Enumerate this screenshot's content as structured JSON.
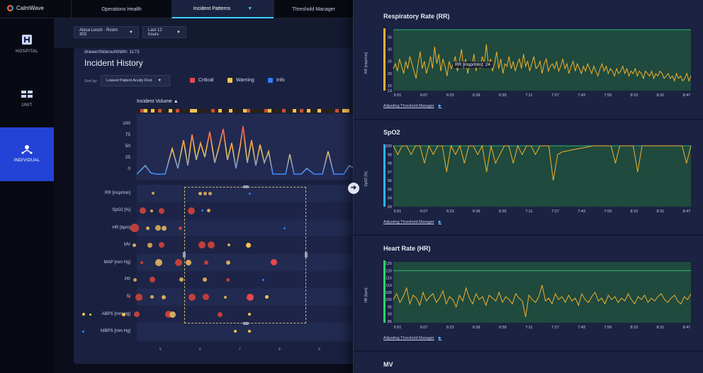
{
  "app": {
    "name": "CalmWave"
  },
  "tabs": [
    {
      "label": "Operations Health"
    },
    {
      "label": "Incident Patterns"
    },
    {
      "label": "Threshold Manager"
    }
  ],
  "sidebar": {
    "items": [
      {
        "label": "HOSPITAL",
        "icon": "hospital-icon"
      },
      {
        "label": "UNIT",
        "icon": "beds-icon"
      },
      {
        "label": "INDIVIDUAL",
        "icon": "person-network-icon"
      }
    ]
  },
  "filters": {
    "patient": "Alesa Lesch · Room 303",
    "time_range": "Last 12 hours"
  },
  "panel": {
    "debug_text": "drawerSlideoutWidth: 1173",
    "title": "Incident History",
    "sort_label": "Sort by:",
    "sort_value": "Lowest Patient Acuity First",
    "legend": [
      {
        "label": "Critical",
        "color": "#e5484d"
      },
      {
        "label": "Warning",
        "color": "#f5c451"
      },
      {
        "label": "Info",
        "color": "#2f7dff"
      }
    ],
    "volume_label": "Incident Volume",
    "volume_yticks": [
      "100",
      "75",
      "50",
      "25",
      "0"
    ],
    "rows": [
      "RR [insp/min]",
      "SpO2 [%]",
      "HR [bpm]",
      "MV",
      "MAP [mm Hg]",
      "PP",
      "SI",
      "ABPS [mm Hg]",
      "NIBPS [mm Hg]"
    ],
    "xticks": [
      "5",
      "6",
      "7",
      "8",
      "9"
    ]
  },
  "chart_data": [
    {
      "type": "line",
      "title": "Respiratory Rate (RR)",
      "ylabel": "RR [insp/min]",
      "yticks": [
        "35",
        "30",
        "25",
        "20",
        "15",
        "13"
      ],
      "ylim": [
        13,
        38
      ],
      "xticks": [
        "5:51",
        "6:07",
        "6:23",
        "6:39",
        "6:55",
        "7:11",
        "7:27",
        "7:43",
        "7:59",
        "8:15",
        "8:31",
        "8:47"
      ],
      "threshold_band": [
        13,
        38
      ],
      "values": [
        22,
        24,
        21,
        26,
        23,
        20,
        25,
        22,
        27,
        24,
        21,
        18,
        24,
        29,
        22,
        25,
        20,
        23,
        27,
        22,
        31,
        24,
        28,
        21,
        26,
        23,
        19,
        25,
        22,
        24,
        27,
        21,
        25,
        30,
        22,
        26,
        20,
        24,
        23,
        28,
        21,
        25,
        22,
        27,
        24,
        32,
        23,
        26,
        21,
        24,
        29,
        22,
        26,
        20,
        24,
        23,
        27,
        22,
        25,
        21,
        24,
        26,
        22,
        28,
        23,
        25,
        21,
        24,
        27,
        22,
        23,
        25,
        20,
        24,
        26,
        21,
        23,
        24,
        22,
        25,
        21,
        23,
        26,
        22,
        24,
        20,
        23,
        25,
        21,
        24,
        22,
        20,
        23,
        21,
        24,
        22,
        20,
        23,
        21,
        19,
        22,
        24,
        21,
        23,
        20,
        22,
        21,
        19,
        22,
        20,
        21,
        23,
        20,
        22,
        19,
        21,
        20,
        22,
        19,
        21,
        20,
        18,
        21,
        20,
        19,
        21,
        18,
        20,
        19,
        21,
        20,
        18,
        19,
        20,
        18,
        19,
        17,
        20,
        18,
        19,
        17,
        18,
        20,
        17,
        19
      ]
    },
    {
      "type": "line",
      "title": "SpO2",
      "ylabel": "SpO2 [%]",
      "yticks": [
        "100",
        "99",
        "98",
        "97",
        "96",
        "95",
        "94",
        "93"
      ],
      "ylim": [
        93,
        100
      ],
      "xticks": [
        "5:51",
        "6:07",
        "6:23",
        "6:39",
        "6:55",
        "7:11",
        "7:27",
        "7:43",
        "7:59",
        "8:15",
        "8:31",
        "8:47"
      ],
      "threshold_band": [
        93,
        100
      ],
      "values": [
        100,
        99,
        100,
        100,
        99,
        100,
        100,
        98,
        100,
        99,
        100,
        100,
        97,
        100,
        99,
        100,
        98,
        100,
        100,
        99,
        100,
        97,
        100,
        98,
        99,
        100,
        100,
        98,
        100,
        99,
        100,
        100,
        99,
        100,
        100,
        100,
        96,
        99,
        99.3,
        99.4,
        99.5,
        99.6,
        99.7,
        99.8,
        99.9,
        100,
        100,
        100,
        100,
        100,
        98,
        100,
        100,
        100,
        100,
        97,
        100,
        100,
        100,
        100,
        100,
        100,
        100,
        100,
        100,
        100,
        98,
        100
      ]
    },
    {
      "type": "line",
      "title": "Heart Rate (HR)",
      "ylabel": "HR [bpm]",
      "yticks": [
        "125",
        "120",
        "115",
        "110",
        "105",
        "100",
        "95",
        "90",
        "85"
      ],
      "ylim": [
        84,
        126
      ],
      "xticks": [
        "5:51",
        "6:07",
        "6:23",
        "6:39",
        "6:55",
        "7:11",
        "7:27",
        "7:43",
        "7:59",
        "8:15",
        "8:31",
        "8:47"
      ],
      "threshold_band": [
        84,
        120
      ],
      "values": [
        100,
        104,
        98,
        102,
        108,
        97,
        103,
        101,
        96,
        105,
        99,
        102,
        104,
        98,
        101,
        106,
        97,
        102,
        100,
        95,
        103,
        99,
        108,
        101,
        97,
        104,
        100,
        102,
        96,
        103,
        101,
        99,
        105,
        98,
        102,
        100,
        97,
        104,
        101,
        99,
        88,
        103,
        100,
        98,
        102,
        110,
        99,
        101,
        97,
        104,
        100,
        102,
        98,
        103,
        99,
        101,
        96,
        104,
        100,
        98,
        102,
        105,
        99,
        101,
        97,
        103,
        100,
        102,
        98,
        101,
        99,
        104,
        100,
        97,
        102,
        100,
        103,
        98,
        101,
        99,
        102,
        104,
        100,
        98,
        101,
        103,
        99,
        97,
        102,
        100,
        104
      ]
    }
  ],
  "drawer": {
    "rr_tooltip": "RR [insp/min]: 24",
    "link_label": "Adjusting Threshold Manager",
    "next_card_title": "MV"
  }
}
